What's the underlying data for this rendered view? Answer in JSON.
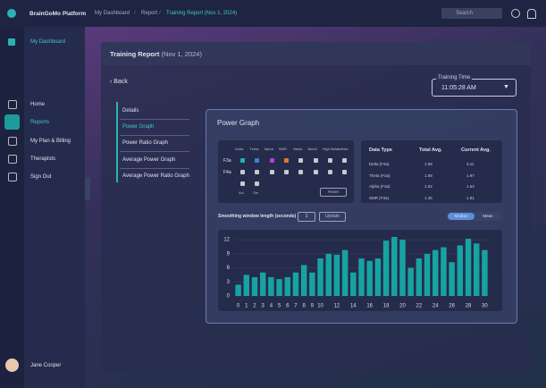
{
  "app": {
    "brand": "BrainGoMo Platform",
    "breadcrumb": [
      "My Dashboard",
      "Report",
      "Training Report (Nov 1, 2024)"
    ],
    "search": "Search"
  },
  "sidebar": {
    "top": "My Dashboard",
    "nav": [
      "Home",
      "Reports",
      "My Plan & Billing",
      "Therapists",
      "Sign Out"
    ],
    "active": 1,
    "user": "Jane Cooper"
  },
  "report": {
    "title": "Training Report",
    "date": "(Nov 1, 2024)",
    "back": "Back",
    "time_label": "Training Time",
    "time": "11:05:28 AM"
  },
  "tabs": {
    "items": [
      "Details",
      "Power Graph",
      "Power Ratio Graph",
      "Average Power Graph",
      "Average Power Ratio Graph"
    ],
    "active": 1
  },
  "panel": {
    "title": "Power Graph",
    "bands": {
      "names": [
        "Delta",
        "Theta",
        "Alpha",
        "SMR",
        "Beta1",
        "Beta2",
        "High Beta",
        "Artifact"
      ],
      "colors": [
        "#1fb5b5",
        "#3b7ee0",
        "#c23ad6",
        "#e07a2c",
        "#c8c8d0",
        "#c8c8d0",
        "#c8c8d0",
        "#c8c8d0"
      ],
      "rows": [
        {
          "name": "F3a",
          "checked": [
            true,
            true,
            true,
            true,
            false,
            false,
            false,
            false
          ]
        },
        {
          "name": "F4a",
          "checked": [
            false,
            false,
            false,
            false,
            false,
            false,
            false,
            false
          ]
        }
      ],
      "extra": [
        "Avl",
        "Sm"
      ],
      "reset": "Reset"
    },
    "table": {
      "headers": [
        "Data Type",
        "Total Avg.",
        "Current Avg."
      ],
      "rows": [
        [
          "Delta (F3a)",
          "1.89",
          "3.11"
        ],
        [
          "Theta (F3a)",
          "1.08",
          "1.97"
        ],
        [
          "Alpha (F3a)",
          "1.02",
          "1.52"
        ],
        [
          "SMR (F3a)",
          "1.36",
          "1.91"
        ]
      ]
    },
    "smoothing": {
      "label": "Smoothing window length (seconds)",
      "value": "1",
      "button": "Update",
      "toggle": [
        "Median",
        "Mean"
      ],
      "active": 0
    }
  },
  "chart_data": {
    "type": "bar",
    "color": "#17a3a3",
    "categories": [
      "0",
      "1",
      "2",
      "3",
      "4",
      "5",
      "6",
      "7",
      "8",
      "9",
      "10",
      null,
      "12",
      null,
      "14",
      null,
      "16",
      null,
      "18",
      null,
      "20",
      null,
      "22",
      null,
      "24",
      null,
      "26",
      null,
      "28",
      null,
      "30"
    ],
    "values": [
      2.4,
      4.5,
      4,
      5,
      4,
      3.6,
      4,
      5,
      6.6,
      5,
      8,
      9,
      8.8,
      9.8,
      5,
      8,
      7.5,
      8,
      11.8,
      12.6,
      12,
      6,
      8,
      9,
      9.8,
      10.4,
      7.2,
      10.8,
      12.2,
      11.2,
      9.8
    ],
    "ylim": [
      0,
      12.6
    ],
    "yticks": [
      0,
      3,
      6,
      9,
      12
    ],
    "grid": true
  }
}
